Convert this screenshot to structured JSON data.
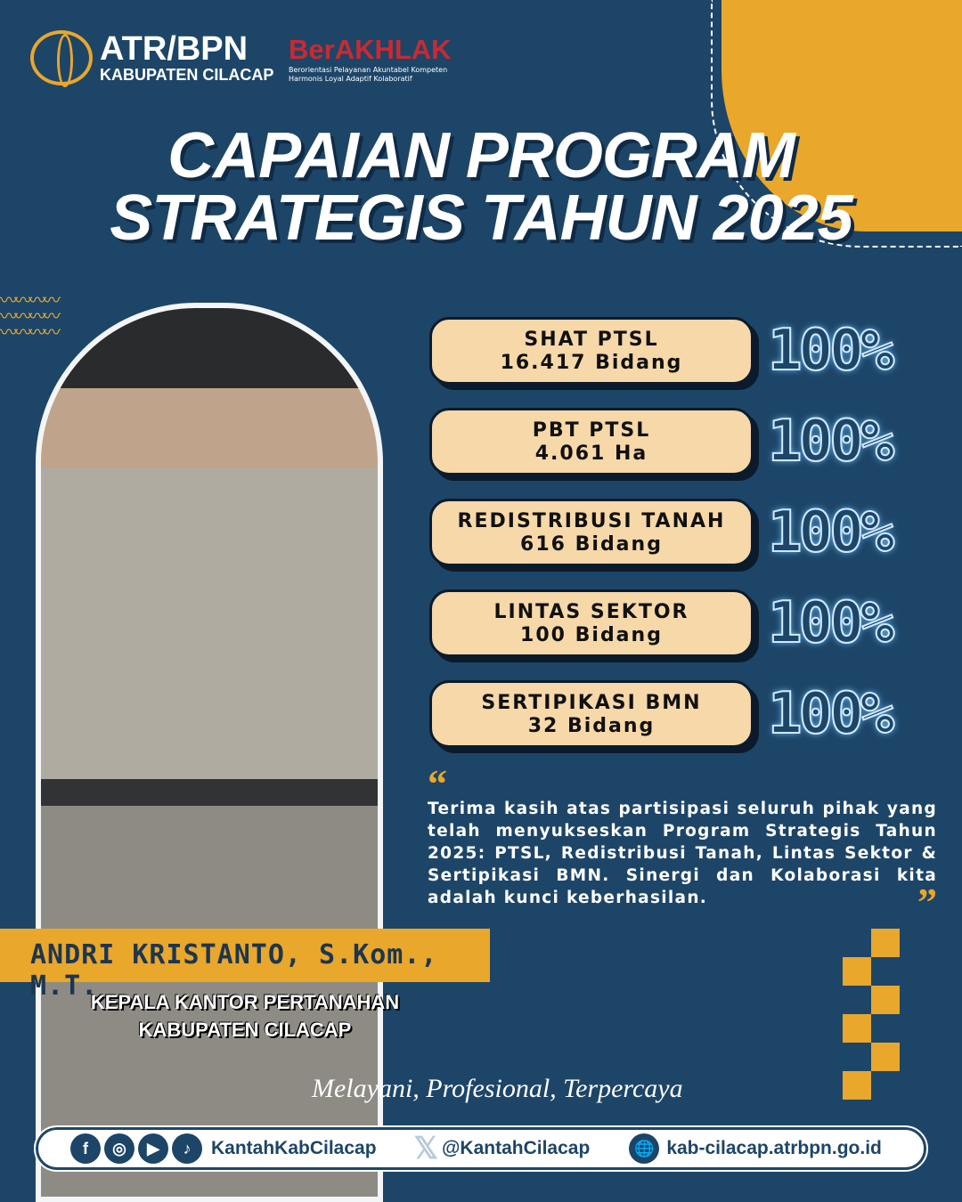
{
  "header": {
    "brand": "ATR/BPN",
    "office": "KABUPATEN CILACAP",
    "values_logo": "BerAKHLAK",
    "values_tagline": "Berorientasi Pelayanan Akuntabel Kompeten Harmonis Loyal Adaptif Kolaboratif"
  },
  "title": {
    "line1": "CAPAIAN PROGRAM",
    "line2": "STRATEGIS TAHUN 2025"
  },
  "achievements": [
    {
      "program": "SHAT PTSL",
      "amount": "16.417 Bidang",
      "percent": "100%"
    },
    {
      "program": "PBT PTSL",
      "amount": "4.061 Ha",
      "percent": "100%"
    },
    {
      "program": "REDISTRIBUSI TANAH",
      "amount": "616 Bidang",
      "percent": "100%"
    },
    {
      "program": "LINTAS SEKTOR",
      "amount": "100 Bidang",
      "percent": "100%"
    },
    {
      "program": "SERTIPIKASI BMN",
      "amount": "32 Bidang",
      "percent": "100%"
    }
  ],
  "quote": "Terima kasih atas partisipasi seluruh pihak yang telah menyukseskan Program Strategis Tahun 2025: PTSL, Redistribusi Tanah, Lintas Sektor & Sertipikasi BMN. Sinergi dan Kolaborasi kita adalah kunci keberhasilan.",
  "person": {
    "name": "ANDRI KRISTANTO, S.Kom., M.T.",
    "position_line1": "KEPALA KANTOR PERTANAHAN",
    "position_line2": "KABUPATEN CILACAP"
  },
  "motto": "Melayani, Profesional, Terpercaya",
  "footer": {
    "social_handle": "KantahKabCilacap",
    "x_handle": "@KantahCilacap",
    "website": "kab-cilacap.atrbpn.go.id"
  },
  "colors": {
    "background": "#1d4568",
    "accent": "#e9a72b",
    "card": "#f7d8a9",
    "brand_red": "#c92a32"
  }
}
